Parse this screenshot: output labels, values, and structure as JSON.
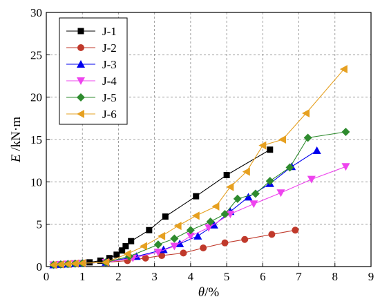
{
  "chart_data": {
    "type": "line",
    "xlabel_var": "θ",
    "xlabel_unit": "/%",
    "ylabel_var": "E",
    "ylabel_unit": " /kN·m",
    "xlim": [
      0,
      9
    ],
    "ylim": [
      0,
      30
    ],
    "xticks": [
      0,
      1,
      2,
      3,
      4,
      5,
      6,
      7,
      8,
      9
    ],
    "yticks": [
      0,
      5,
      10,
      15,
      20,
      25,
      30
    ],
    "grid": true,
    "legend_position": "top-left",
    "series": [
      {
        "name": "J-1",
        "color": "#000000",
        "marker": "square",
        "x": [
          0.2,
          0.4,
          0.6,
          0.8,
          1.0,
          1.2,
          1.5,
          1.75,
          1.95,
          2.1,
          2.2,
          2.35,
          2.85,
          3.3,
          4.15,
          5.0,
          6.2
        ],
        "y": [
          0.2,
          0.25,
          0.3,
          0.35,
          0.4,
          0.5,
          0.7,
          1.0,
          1.4,
          1.9,
          2.4,
          3.0,
          4.3,
          5.9,
          8.3,
          10.8,
          13.8
        ]
      },
      {
        "name": "J-2",
        "color": "#c0392b",
        "marker": "circle",
        "x": [
          0.2,
          0.4,
          0.6,
          0.8,
          1.0,
          1.65,
          2.25,
          2.75,
          3.2,
          3.8,
          4.35,
          4.95,
          5.5,
          6.25,
          6.9
        ],
        "y": [
          0.2,
          0.25,
          0.3,
          0.35,
          0.4,
          0.5,
          0.7,
          1.0,
          1.3,
          1.6,
          2.2,
          2.8,
          3.2,
          3.8,
          4.3
        ]
      },
      {
        "name": "J-3",
        "color": "#0000ee",
        "marker": "triangle-up",
        "x": [
          0.2,
          0.4,
          0.6,
          0.8,
          1.0,
          1.65,
          2.5,
          3.25,
          3.7,
          4.2,
          4.65,
          5.1,
          5.6,
          6.2,
          6.8,
          7.5
        ],
        "y": [
          0.2,
          0.25,
          0.3,
          0.35,
          0.4,
          0.5,
          1.2,
          2.0,
          2.7,
          3.6,
          4.9,
          6.5,
          8.2,
          9.8,
          11.8,
          13.7
        ]
      },
      {
        "name": "J-4",
        "color": "#ee44ee",
        "marker": "triangle-down",
        "x": [
          0.2,
          0.4,
          0.6,
          0.8,
          1.0,
          1.65,
          2.4,
          3.1,
          3.55,
          4.0,
          4.5,
          5.1,
          5.75,
          6.5,
          7.35,
          8.3
        ],
        "y": [
          0.2,
          0.25,
          0.3,
          0.35,
          0.4,
          0.5,
          1.0,
          1.7,
          2.4,
          3.6,
          4.6,
          6.2,
          7.4,
          8.7,
          10.3,
          11.8
        ]
      },
      {
        "name": "J-5",
        "color": "#2e8b2e",
        "marker": "diamond",
        "x": [
          0.2,
          0.4,
          0.6,
          0.8,
          1.0,
          1.65,
          2.3,
          3.1,
          3.55,
          4.0,
          4.55,
          4.95,
          5.3,
          5.8,
          6.2,
          6.75,
          7.25,
          8.3
        ],
        "y": [
          0.2,
          0.25,
          0.3,
          0.35,
          0.4,
          0.5,
          1.2,
          2.6,
          3.3,
          4.3,
          5.3,
          6.2,
          8.0,
          8.6,
          10.1,
          11.7,
          15.2,
          15.9
        ]
      },
      {
        "name": "J-6",
        "color": "#e6a020",
        "marker": "triangle-left",
        "x": [
          0.2,
          0.4,
          0.6,
          0.8,
          1.0,
          1.65,
          2.25,
          2.7,
          3.2,
          3.65,
          4.15,
          4.7,
          5.1,
          5.55,
          6.0,
          6.55,
          7.2,
          8.25
        ],
        "y": [
          0.2,
          0.25,
          0.3,
          0.35,
          0.4,
          0.5,
          1.5,
          2.4,
          3.6,
          4.8,
          6.0,
          7.1,
          9.4,
          11.2,
          14.3,
          15.0,
          18.1,
          23.3
        ]
      }
    ]
  }
}
